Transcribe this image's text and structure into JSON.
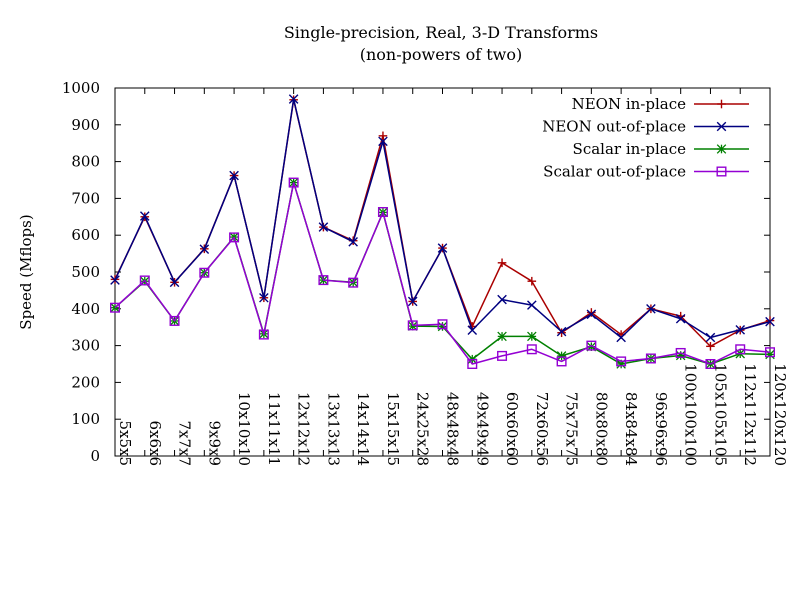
{
  "chart_data": {
    "type": "line",
    "title": "Single-precision, Real, 3-D Transforms",
    "subtitle": "(non-powers of two)",
    "xlabel": "",
    "ylabel": "Speed (Mflops)",
    "ylim": [
      0,
      1000
    ],
    "yticks": [
      0,
      100,
      200,
      300,
      400,
      500,
      600,
      700,
      800,
      900,
      1000
    ],
    "grid": false,
    "legend_position": "top-right",
    "categories": [
      "5x5x5",
      "6x6x6",
      "7x7x7",
      "9x9x9",
      "10x10x10",
      "11x11x11",
      "12x12x12",
      "13x13x13",
      "14x14x14",
      "15x15x15",
      "24x25x28",
      "48x48x48",
      "49x49x49",
      "60x60x60",
      "72x60x56",
      "75x75x75",
      "80x80x80",
      "84x84x84",
      "96x96x96",
      "100x100x100",
      "105x105x105",
      "112x112x112",
      "120x120x120"
    ],
    "series": [
      {
        "name": "NEON in-place",
        "color": "#aa0000",
        "marker": "plus",
        "values": [
          480,
          650,
          472,
          563,
          762,
          430,
          968,
          622,
          585,
          870,
          420,
          565,
          352,
          525,
          475,
          335,
          390,
          330,
          400,
          380,
          298,
          342,
          368
        ]
      },
      {
        "name": "NEON out-of-place",
        "color": "#000080",
        "marker": "x",
        "values": [
          478,
          652,
          472,
          562,
          762,
          430,
          970,
          622,
          582,
          855,
          420,
          565,
          342,
          425,
          410,
          338,
          385,
          322,
          400,
          373,
          322,
          343,
          365
        ]
      },
      {
        "name": "Scalar in-place",
        "color": "#008000",
        "marker": "star",
        "values": [
          403,
          475,
          367,
          498,
          595,
          332,
          743,
          478,
          472,
          662,
          353,
          352,
          263,
          325,
          325,
          272,
          297,
          250,
          265,
          273,
          250,
          278,
          276
        ]
      },
      {
        "name": "Scalar out-of-place",
        "color": "#9400d3",
        "marker": "square",
        "values": [
          403,
          477,
          367,
          498,
          594,
          330,
          743,
          478,
          471,
          663,
          355,
          358,
          250,
          272,
          290,
          257,
          300,
          257,
          265,
          280,
          250,
          290,
          282
        ]
      }
    ]
  }
}
